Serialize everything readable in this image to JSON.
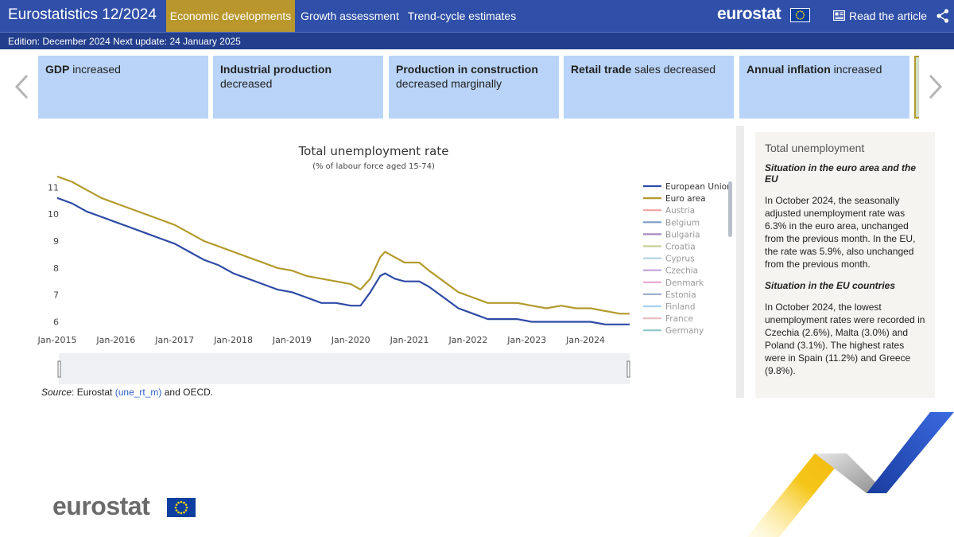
{
  "header": {
    "title": "Eurostatistics 12/2024",
    "tabs": [
      {
        "label": "Economic developments",
        "active": true
      },
      {
        "label": "Growth assessment",
        "active": false
      },
      {
        "label": "Trend-cycle estimates",
        "active": false
      }
    ],
    "brand": "eurostat",
    "read_article": "Read the article"
  },
  "edition": "Edition: December 2024 Next update: 24 January 2025",
  "cards": [
    {
      "bold": "GDP",
      "rest": " increased"
    },
    {
      "bold": "Industrial production",
      "rest": " decreased"
    },
    {
      "bold": "Production in construction",
      "rest": " decreased marginally"
    },
    {
      "bold": "Retail trade",
      "rest": " sales decreased"
    },
    {
      "bold": "Annual inflation",
      "rest": " increased"
    }
  ],
  "chart_data": {
    "type": "line",
    "title": "Total unemployment rate",
    "subtitle": "(% of labour force aged 15-74)",
    "xlabel": "",
    "ylabel": "",
    "x_ticks": [
      "Jan-2015",
      "Jan-2016",
      "Jan-2017",
      "Jan-2018",
      "Jan-2019",
      "Jan-2020",
      "Jan-2021",
      "Jan-2022",
      "Jan-2023",
      "Jan-2024"
    ],
    "y_ticks": [
      6,
      7,
      8,
      9,
      10,
      11
    ],
    "ylim": [
      5.6,
      11.6
    ],
    "xlim": [
      "2015-01",
      "2024-10"
    ],
    "grid": false,
    "legend_position": "right",
    "series": [
      {
        "name": "European Union",
        "color": "#2e4aa6",
        "points": [
          [
            "2015-01",
            10.6
          ],
          [
            "2015-04",
            10.4
          ],
          [
            "2015-07",
            10.1
          ],
          [
            "2015-10",
            9.9
          ],
          [
            "2016-01",
            9.7
          ],
          [
            "2016-04",
            9.5
          ],
          [
            "2016-07",
            9.3
          ],
          [
            "2016-10",
            9.1
          ],
          [
            "2017-01",
            8.9
          ],
          [
            "2017-04",
            8.6
          ],
          [
            "2017-07",
            8.3
          ],
          [
            "2017-10",
            8.1
          ],
          [
            "2018-01",
            7.8
          ],
          [
            "2018-04",
            7.6
          ],
          [
            "2018-07",
            7.4
          ],
          [
            "2018-10",
            7.2
          ],
          [
            "2019-01",
            7.1
          ],
          [
            "2019-04",
            6.9
          ],
          [
            "2019-07",
            6.7
          ],
          [
            "2019-10",
            6.7
          ],
          [
            "2020-01",
            6.6
          ],
          [
            "2020-03",
            6.6
          ],
          [
            "2020-05",
            7.1
          ],
          [
            "2020-07",
            7.7
          ],
          [
            "2020-08",
            7.8
          ],
          [
            "2020-10",
            7.6
          ],
          [
            "2020-12",
            7.5
          ],
          [
            "2021-03",
            7.5
          ],
          [
            "2021-05",
            7.3
          ],
          [
            "2021-08",
            6.9
          ],
          [
            "2021-11",
            6.5
          ],
          [
            "2022-02",
            6.3
          ],
          [
            "2022-05",
            6.1
          ],
          [
            "2022-08",
            6.1
          ],
          [
            "2022-11",
            6.1
          ],
          [
            "2023-02",
            6.0
          ],
          [
            "2023-05",
            6.0
          ],
          [
            "2023-08",
            6.0
          ],
          [
            "2023-11",
            6.0
          ],
          [
            "2024-02",
            6.0
          ],
          [
            "2024-05",
            5.9
          ],
          [
            "2024-08",
            5.9
          ],
          [
            "2024-10",
            5.9
          ]
        ]
      },
      {
        "name": "Euro area",
        "color": "#b39a2c",
        "points": [
          [
            "2015-01",
            11.4
          ],
          [
            "2015-04",
            11.2
          ],
          [
            "2015-07",
            10.9
          ],
          [
            "2015-10",
            10.6
          ],
          [
            "2016-01",
            10.4
          ],
          [
            "2016-04",
            10.2
          ],
          [
            "2016-07",
            10.0
          ],
          [
            "2016-10",
            9.8
          ],
          [
            "2017-01",
            9.6
          ],
          [
            "2017-04",
            9.3
          ],
          [
            "2017-07",
            9.0
          ],
          [
            "2017-10",
            8.8
          ],
          [
            "2018-01",
            8.6
          ],
          [
            "2018-04",
            8.4
          ],
          [
            "2018-07",
            8.2
          ],
          [
            "2018-10",
            8.0
          ],
          [
            "2019-01",
            7.9
          ],
          [
            "2019-04",
            7.7
          ],
          [
            "2019-07",
            7.6
          ],
          [
            "2019-10",
            7.5
          ],
          [
            "2020-01",
            7.4
          ],
          [
            "2020-03",
            7.2
          ],
          [
            "2020-05",
            7.6
          ],
          [
            "2020-07",
            8.4
          ],
          [
            "2020-08",
            8.6
          ],
          [
            "2020-10",
            8.4
          ],
          [
            "2020-12",
            8.2
          ],
          [
            "2021-03",
            8.2
          ],
          [
            "2021-05",
            7.9
          ],
          [
            "2021-08",
            7.5
          ],
          [
            "2021-11",
            7.1
          ],
          [
            "2022-02",
            6.9
          ],
          [
            "2022-05",
            6.7
          ],
          [
            "2022-08",
            6.7
          ],
          [
            "2022-11",
            6.7
          ],
          [
            "2023-02",
            6.6
          ],
          [
            "2023-05",
            6.5
          ],
          [
            "2023-08",
            6.6
          ],
          [
            "2023-11",
            6.5
          ],
          [
            "2024-02",
            6.5
          ],
          [
            "2024-05",
            6.4
          ],
          [
            "2024-08",
            6.3
          ],
          [
            "2024-10",
            6.3
          ]
        ]
      }
    ],
    "legend_hidden": [
      {
        "name": "Austria",
        "color": "#f0a2a2"
      },
      {
        "name": "Belgium",
        "color": "#7c9bc7"
      },
      {
        "name": "Bulgaria",
        "color": "#a98cbf"
      },
      {
        "name": "Croatia",
        "color": "#c6cf9a"
      },
      {
        "name": "Cyprus",
        "color": "#b7d7e6"
      },
      {
        "name": "Czechia",
        "color": "#c3a0d8"
      },
      {
        "name": "Denmark",
        "color": "#e9a6cf"
      },
      {
        "name": "Estonia",
        "color": "#9fb2cf"
      },
      {
        "name": "Finland",
        "color": "#a8d1ef"
      },
      {
        "name": "France",
        "color": "#e8bfbf"
      },
      {
        "name": "Germany",
        "color": "#8fc6c7"
      }
    ]
  },
  "source": {
    "label": "Source",
    "text1": ": Eurostat ",
    "link": "(une_rt_m)",
    "text2": " and OECD."
  },
  "panel": {
    "title": "Total unemployment",
    "h1": "Situation in the euro area and the EU",
    "p1": "In October 2024, the seasonally adjusted unemployment rate was 6.3% in the euro area, unchanged from the previous month. In the EU, the rate was 5.9%, also unchanged from the previous month.",
    "h2": "Situation in the EU countries",
    "p2": "In October 2024, the lowest unemployment rates were recorded in Czechia (2.6%), Malta (3.0%) and Poland (3.1%). The highest rates were in Spain (11.2%) and Greece (9.8%)."
  },
  "footer": {
    "brand": "eurostat"
  },
  "icons": {
    "prev": "chevron-left-icon",
    "next": "chevron-right-icon",
    "article": "newspaper-icon",
    "share": "share-icon"
  }
}
